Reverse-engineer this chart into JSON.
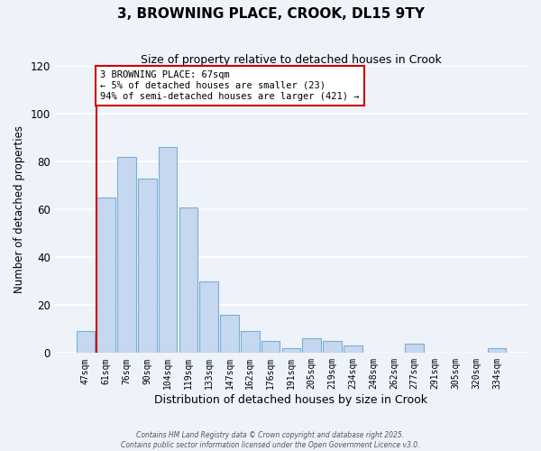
{
  "title": "3, BROWNING PLACE, CROOK, DL15 9TY",
  "subtitle": "Size of property relative to detached houses in Crook",
  "xlabel": "Distribution of detached houses by size in Crook",
  "ylabel": "Number of detached properties",
  "bar_labels": [
    "47sqm",
    "61sqm",
    "76sqm",
    "90sqm",
    "104sqm",
    "119sqm",
    "133sqm",
    "147sqm",
    "162sqm",
    "176sqm",
    "191sqm",
    "205sqm",
    "219sqm",
    "234sqm",
    "248sqm",
    "262sqm",
    "277sqm",
    "291sqm",
    "305sqm",
    "320sqm",
    "334sqm"
  ],
  "bar_values": [
    9,
    65,
    82,
    73,
    86,
    61,
    30,
    16,
    9,
    5,
    2,
    6,
    5,
    3,
    0,
    0,
    4,
    0,
    0,
    0,
    2
  ],
  "bar_color": "#c5d8f0",
  "bar_edge_color": "#7aafd4",
  "vline_color": "#cc0000",
  "annotation_text": "3 BROWNING PLACE: 67sqm\n← 5% of detached houses are smaller (23)\n94% of semi-detached houses are larger (421) →",
  "annotation_box_facecolor": "#ffffff",
  "annotation_box_edgecolor": "#cc0000",
  "ylim": [
    0,
    120
  ],
  "yticks": [
    0,
    20,
    40,
    60,
    80,
    100,
    120
  ],
  "background_color": "#eef2f9",
  "grid_color": "#ffffff",
  "footer1": "Contains HM Land Registry data © Crown copyright and database right 2025.",
  "footer2": "Contains public sector information licensed under the Open Government Licence v3.0."
}
